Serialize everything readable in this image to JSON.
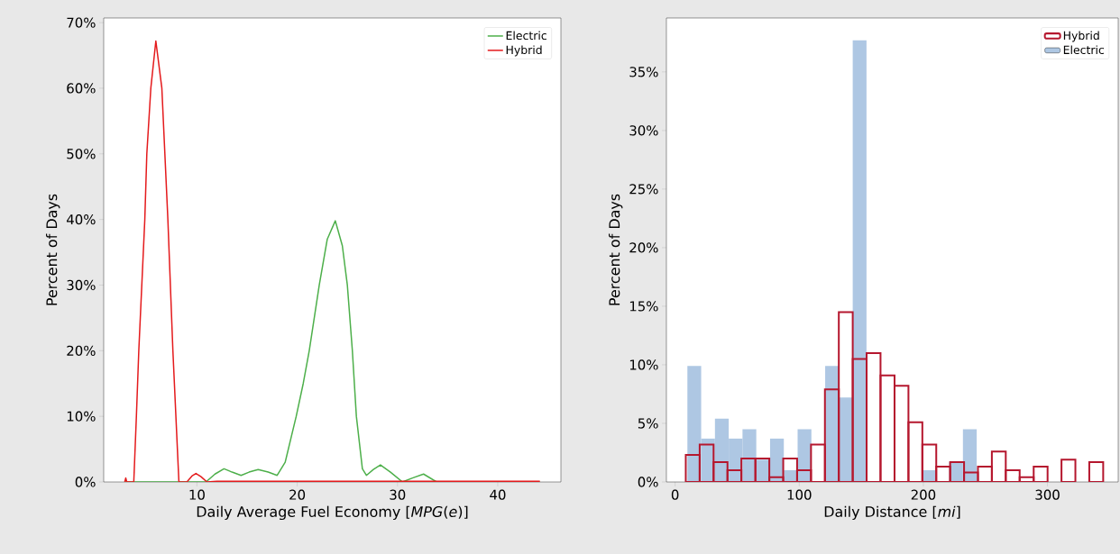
{
  "chart_data": [
    {
      "type": "line",
      "xlabel": "Daily Average Fuel Economy [*MPG*(*e*)]",
      "ylabel": "Percent of Days",
      "xlim": [
        0.7,
        46.3
      ],
      "ylim": [
        0,
        70.7
      ],
      "xticks": [
        10,
        20,
        30,
        40
      ],
      "yticks": [
        {
          "value": 0,
          "label": "0%"
        },
        {
          "value": 10,
          "label": "10%"
        },
        {
          "value": 20,
          "label": "20%"
        },
        {
          "value": 30,
          "label": "30%"
        },
        {
          "value": 40,
          "label": "40%"
        },
        {
          "value": 50,
          "label": "50%"
        },
        {
          "value": 60,
          "label": "60%"
        },
        {
          "value": 70,
          "label": "70%"
        }
      ],
      "legend": "top right",
      "grid": false,
      "marker": "none",
      "line_style": "solid",
      "series": [
        {
          "name": "Electric",
          "color": "#4daf4a",
          "x": [
            2.8,
            6,
            10.9,
            11.8,
            12.7,
            13.5,
            14.4,
            15.2,
            16.1,
            17.1,
            18.0,
            18.8,
            19.9,
            20.6,
            21.2,
            22.2,
            23.0,
            23.8,
            24.5,
            25.0,
            25.5,
            25.9,
            26.5,
            26.9,
            27.6,
            28.3,
            29.3,
            30.5,
            31.5,
            32.6,
            33.9,
            44.2
          ],
          "values": [
            0,
            0,
            0,
            1.2,
            2.0,
            1.5,
            1.0,
            1.5,
            1.9,
            1.5,
            1.0,
            3,
            10,
            15,
            20,
            30,
            37,
            39.8,
            36,
            30,
            20,
            10,
            2,
            1.0,
            1.9,
            2.6,
            1.5,
            0,
            0.6,
            1.2,
            0,
            0
          ]
        },
        {
          "name": "Hybrid",
          "color": "#e41a1c",
          "x": [
            2.8,
            2.9,
            3.0,
            3.7,
            3.96,
            4.2,
            4.8,
            5.0,
            5.4,
            5.9,
            6.5,
            6.8,
            7.1,
            7.6,
            7.9,
            8.2,
            9.0,
            9.5,
            9.9,
            10.4,
            11.0,
            12.0,
            44.2
          ],
          "values": [
            0,
            0.6,
            0,
            0,
            10,
            20,
            40,
            50,
            60,
            67.2,
            60,
            50,
            40,
            20,
            10,
            0,
            0,
            0.9,
            1.3,
            0.8,
            0,
            0.1,
            0.1
          ]
        }
      ]
    },
    {
      "type": "histogram",
      "xlabel": "Daily Distance [*mi*]",
      "ylabel": "Percent of Days",
      "xlim": [
        -7,
        357
      ],
      "ylim": [
        0,
        39.6
      ],
      "xticks": [
        0,
        100,
        200,
        300
      ],
      "yticks": [
        {
          "value": 0,
          "label": "0%"
        },
        {
          "value": 5,
          "label": "5%"
        },
        {
          "value": 10,
          "label": "10%"
        },
        {
          "value": 15,
          "label": "15%"
        },
        {
          "value": 20,
          "label": "20%"
        },
        {
          "value": 25,
          "label": "25%"
        },
        {
          "value": 30,
          "label": "30%"
        },
        {
          "value": 35,
          "label": "35%"
        }
      ],
      "legend": "top right",
      "grid": false,
      "bins": [
        8.6,
        19.8,
        31.0,
        42.2,
        53.4,
        64.7,
        75.9,
        87.1,
        98.3,
        109.5,
        120.7,
        131.9,
        143.1,
        154.3,
        165.5,
        176.8,
        188.0,
        199.2,
        210.4,
        221.6,
        232.8,
        244.0,
        255.2,
        266.4,
        277.6,
        288.9,
        300.1,
        311.3,
        322.5,
        333.7,
        344.9
      ],
      "series": [
        {
          "name": "Hybrid",
          "color": "#b5172e",
          "line_style": "solid",
          "values": [
            2.3,
            3.2,
            1.7,
            1.0,
            2.0,
            2.0,
            0.4,
            2.0,
            1.0,
            3.2,
            7.9,
            14.5,
            10.5,
            11.0,
            9.1,
            8.2,
            5.1,
            3.2,
            1.3,
            1.7,
            0.8,
            1.3,
            2.6,
            1.0,
            0.4,
            1.3,
            0,
            1.9,
            0,
            1.7
          ]
        },
        {
          "name": "Electric",
          "color": "#aec7e3",
          "bins": [
            9.9,
            21.0,
            32.1,
            43.2,
            54.3,
            65.4,
            76.5,
            87.6,
            98.7,
            109.8,
            120.9,
            132.0,
            143.1,
            154.2,
            165.3,
            176.4,
            187.5,
            198.6,
            209.7,
            220.8,
            231.9,
            243.0
          ],
          "values": [
            9.9,
            3.7,
            5.4,
            3.7,
            4.5,
            1.9,
            3.7,
            1.0,
            4.5,
            0,
            9.9,
            7.2,
            37.7,
            0,
            0,
            0,
            0,
            1.0,
            0,
            1.7,
            4.5
          ]
        }
      ]
    }
  ]
}
